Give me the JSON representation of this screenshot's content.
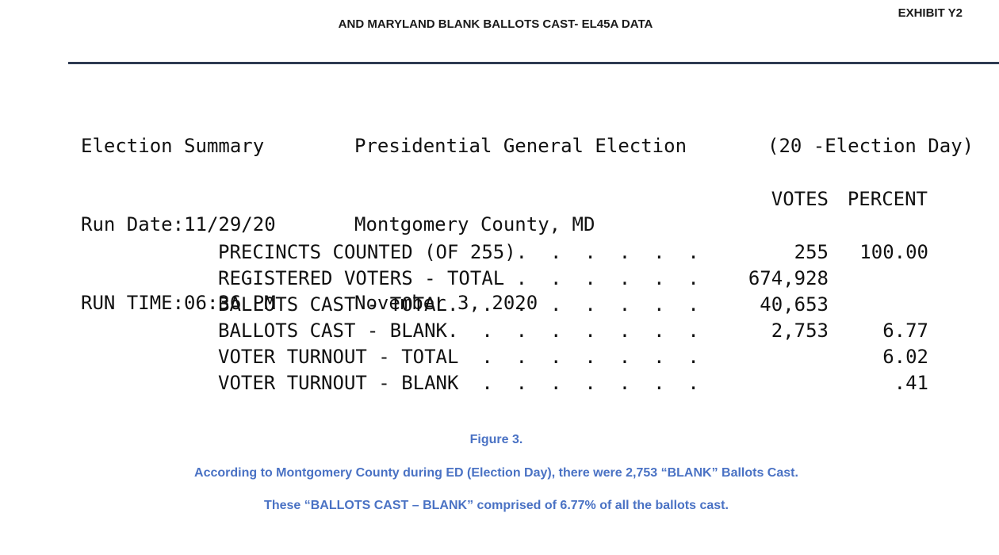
{
  "header": {
    "exhibit": "EXHIBIT Y2",
    "title": "AND MARYLAND BLANK BALLOTS CAST- EL45A DATA"
  },
  "report": {
    "col_a": [
      "Election Summary",
      "Run Date:11/29/20",
      "RUN TIME:06:36 PM"
    ],
    "col_b": [
      "Presidential General Election",
      "Montgomery County, MD",
      "November 3, 2020"
    ],
    "col_c": [
      "(20 -Election Day)"
    ],
    "headers": {
      "votes": "VOTES",
      "percent": "PERCENT"
    },
    "rows": [
      {
        "label": "PRECINCTS COUNTED (OF 255).  .  .  .  .  .",
        "votes": "255",
        "percent": "100.00"
      },
      {
        "label": "REGISTERED VOTERS - TOTAL .  .  .  .  .  .",
        "votes": "674,928",
        "percent": ""
      },
      {
        "label": "BALLOTS CAST - TOTAL.  .  .  .  .  .  .  .",
        "votes": "40,653",
        "percent": ""
      },
      {
        "label": "BALLOTS CAST - BLANK.  .  .  .  .  .  .  .",
        "votes": "2,753",
        "percent": "6.77"
      },
      {
        "label": "VOTER TURNOUT - TOTAL  .  .  .  .  .  .  .",
        "votes": "",
        "percent": "6.02"
      },
      {
        "label": "VOTER TURNOUT - BLANK  .  .  .  .  .  .  .",
        "votes": "",
        "percent": ".41"
      }
    ]
  },
  "caption": {
    "figure_label": "Figure 3.",
    "line1": "According to Montgomery County during ED (Election Day), there were 2,753 “BLANK” Ballots Cast.",
    "line2": "These “BALLOTS CAST – BLANK” comprised of 6.77% of all the ballots cast."
  },
  "colors": {
    "caption": "#4a72c4",
    "rule": "#2e3b52",
    "text": "#111111"
  }
}
